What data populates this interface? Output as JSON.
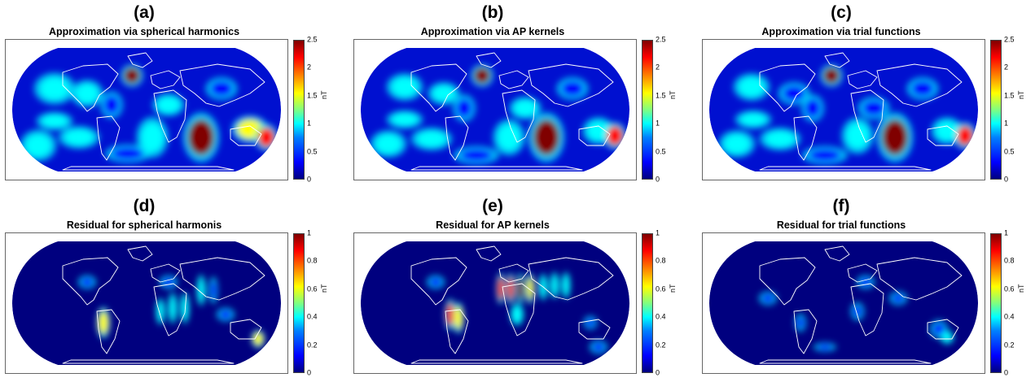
{
  "colors": {
    "background": "#00007f",
    "low": "#0000ff",
    "mid": "#00ffff",
    "high": "#ffff00",
    "peak": "#ff0000",
    "max": "#800000",
    "coast": "#ffffff"
  },
  "panels": [
    {
      "id": "a",
      "tag": "(a)",
      "title": "Approximation via spherical harmonics",
      "unit": "nT",
      "ticks": [
        "2.5",
        "2",
        "1.5",
        "1",
        "0.5",
        "0"
      ]
    },
    {
      "id": "b",
      "tag": "(b)",
      "title": "Approximation via AP kernels",
      "unit": "nT",
      "ticks": [
        "2.5",
        "2",
        "1.5",
        "1",
        "0.5",
        "0"
      ]
    },
    {
      "id": "c",
      "tag": "(c)",
      "title": "Approximation via trial functions",
      "unit": "nT",
      "ticks": [
        "2.5",
        "2",
        "1.5",
        "1",
        "0.5",
        "0"
      ]
    },
    {
      "id": "d",
      "tag": "(d)",
      "title": "Residual for spherical harmonis",
      "unit": "nT",
      "ticks": [
        "1",
        "0.8",
        "0.6",
        "0.4",
        "0.2",
        "0"
      ]
    },
    {
      "id": "e",
      "tag": "(e)",
      "title": "Residual for AP kernels",
      "unit": "nT",
      "ticks": [
        "1",
        "0.8",
        "0.6",
        "0.4",
        "0.2",
        "0"
      ]
    },
    {
      "id": "f",
      "tag": "(f)",
      "title": "Residual for trial functions",
      "unit": "nT",
      "ticks": [
        "1",
        "0.8",
        "0.6",
        "0.4",
        "0.2",
        "0"
      ]
    }
  ]
}
